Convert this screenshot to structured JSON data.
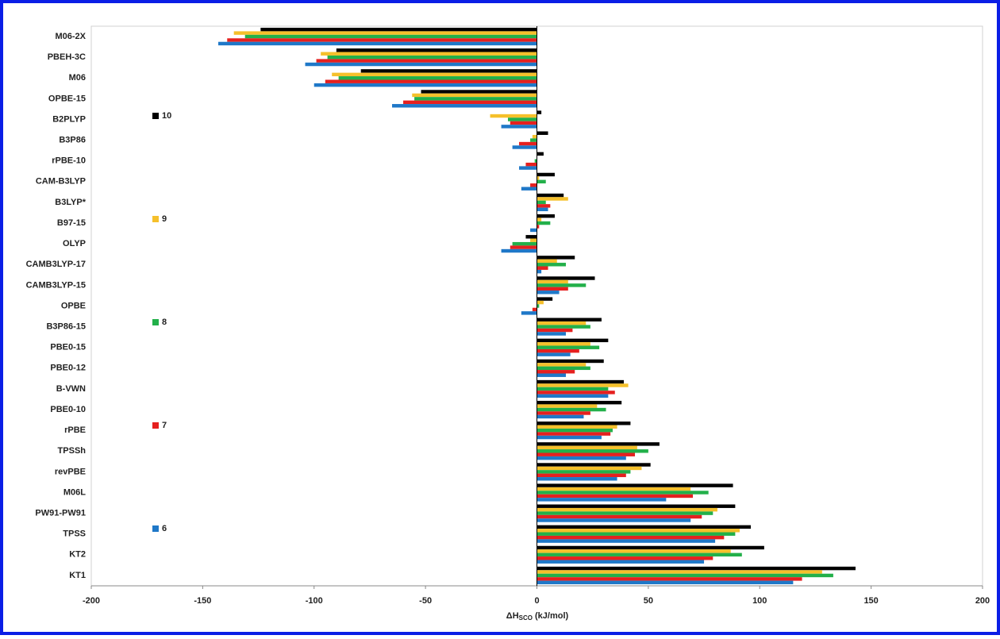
{
  "chart_data": {
    "type": "hbar",
    "x_label": {
      "symbol": "ΔH",
      "sub": "SCO",
      "unit": "(kJ/mol)"
    },
    "categories": [
      "M06-2X",
      "PBEH-3C",
      "M06",
      "OPBE-15",
      "B2PLYP",
      "B3P86",
      "rPBE-10",
      "CAM-B3LYP",
      "B3LYP*",
      "B97-15",
      "OLYP",
      "CAMB3LYP-17",
      "CAMB3LYP-15",
      "OPBE",
      "B3P86-15",
      "PBE0-15",
      "PBE0-12",
      "B-VWN",
      "PBE0-10",
      "rPBE",
      "TPSSh",
      "revPBE",
      "M06L",
      "PW91-PW91",
      "TPSS",
      "KT2",
      "KT1"
    ],
    "series": [
      {
        "name": "10",
        "color": "#000000",
        "values": [
          -124,
          -90,
          -79,
          -52,
          2,
          5,
          3,
          8,
          12,
          8,
          -5,
          17,
          26,
          7,
          29,
          32,
          30,
          39,
          38,
          42,
          55,
          51,
          88,
          89,
          96,
          102,
          143
        ]
      },
      {
        "name": "9",
        "color": "#f5c02b",
        "values": [
          -136,
          -97,
          -92,
          -56,
          -21,
          -2,
          0,
          1,
          14,
          2,
          -3,
          9,
          14,
          3,
          22,
          24,
          22,
          41,
          27,
          36,
          45,
          47,
          69,
          81,
          91,
          87,
          128
        ]
      },
      {
        "name": "8",
        "color": "#23b04a",
        "values": [
          -131,
          -94,
          -89,
          -55,
          -13,
          -3,
          -1,
          4,
          4,
          6,
          -11,
          13,
          22,
          1,
          24,
          28,
          24,
          32,
          31,
          34,
          50,
          42,
          77,
          79,
          89,
          92,
          133
        ]
      },
      {
        "name": "7",
        "color": "#e5201f",
        "values": [
          -139,
          -99,
          -95,
          -60,
          -12,
          -8,
          -5,
          -3,
          6,
          1,
          -12,
          5,
          14,
          -2,
          16,
          19,
          17,
          35,
          24,
          33,
          44,
          40,
          70,
          74,
          84,
          79,
          119
        ]
      },
      {
        "name": "6",
        "color": "#1f78c8",
        "values": [
          -143,
          -104,
          -100,
          -65,
          -16,
          -11,
          -8,
          -7,
          5,
          -3,
          -16,
          2,
          10,
          -7,
          13,
          15,
          13,
          32,
          21,
          29,
          40,
          36,
          58,
          69,
          80,
          75,
          115
        ]
      }
    ],
    "xlim": [
      -200,
      200
    ],
    "xticks": [
      -200,
      -150,
      -100,
      -50,
      0,
      50,
      100,
      150,
      200
    ]
  }
}
